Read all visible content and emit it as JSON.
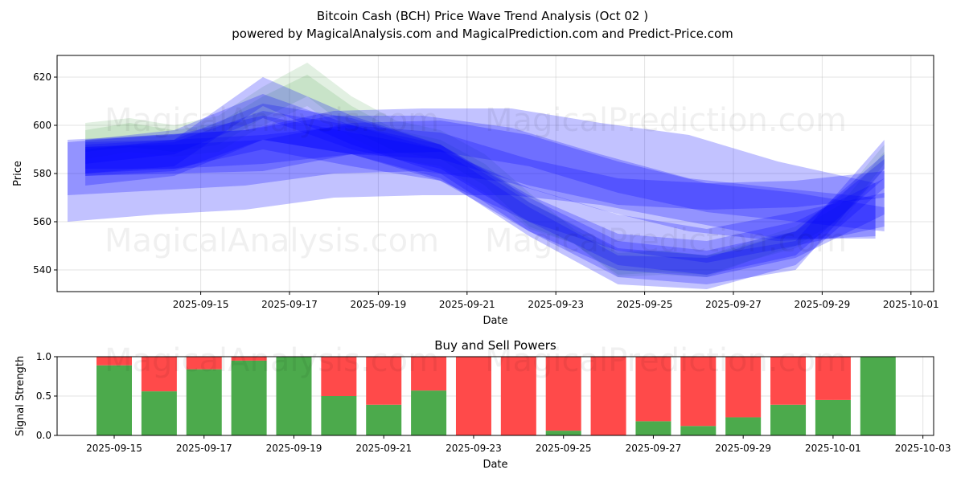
{
  "chart_data": [
    {
      "type": "area",
      "title": "Bitcoin Cash (BCH) Price Wave Trend Analysis (Oct 02 )",
      "subtitle": "powered by MagicalAnalysis.com and MagicalPrediction.com and Predict-Price.com",
      "xlabel": "Date",
      "ylabel": "Price",
      "ylim": [
        531,
        629
      ],
      "yticks": [
        "540",
        "560",
        "580",
        "600",
        "620"
      ],
      "xticks": [
        "2025-09-15",
        "2025-09-17",
        "2025-09-19",
        "2025-09-21",
        "2025-09-23",
        "2025-09-25",
        "2025-09-27",
        "2025-09-29",
        "2025-10-01"
      ],
      "grid": true,
      "watermarks": [
        "MagicalAnalysis.com",
        "MagicalPrediction.com",
        "MagicalAnalysis.com",
        "MagicalPrediction.com"
      ],
      "colors": {
        "green": "#228B22",
        "blue": "#0000ff"
      },
      "green_bands": [
        {
          "x": [
            0.4,
            1.4,
            2.4,
            3.4,
            4.4,
            5.4,
            6.4,
            7.4,
            8.4,
            9.4,
            10.4,
            11.4,
            12.4,
            13.4,
            14.4,
            15.4,
            16.4,
            17.4,
            18.4
          ],
          "upper": [
            601,
            603,
            600,
            604,
            616,
            626,
            612,
            602,
            598,
            588,
            572,
            557,
            547,
            548,
            546,
            552,
            558,
            570,
            592
          ],
          "lower": [
            589,
            591,
            589,
            592,
            603,
            612,
            598,
            589,
            586,
            575,
            558,
            551,
            537,
            538,
            537,
            544,
            550,
            561,
            584
          ]
        },
        {
          "x": [
            0.4,
            1.4,
            2.4,
            3.4,
            4.4,
            5.4,
            6.4,
            7.4,
            8.4,
            9.4,
            10.4,
            11.4,
            12.4,
            13.4,
            14.4,
            15.4,
            16.4,
            17.4,
            18.4
          ],
          "upper": [
            598,
            601,
            598,
            601,
            612,
            621,
            608,
            598,
            594,
            584,
            568,
            559,
            548,
            548,
            546,
            551,
            556,
            567,
            589
          ],
          "lower": [
            586,
            589,
            587,
            589,
            600,
            608,
            595,
            586,
            583,
            572,
            557,
            551,
            538,
            539,
            538,
            544,
            549,
            559,
            582
          ]
        }
      ],
      "blue_bands": [
        {
          "x": [
            0,
            2,
            4,
            6,
            8,
            10,
            12,
            14,
            16,
            18.2
          ],
          "upper": [
            593,
            596,
            598,
            606,
            607,
            607,
            601,
            596,
            585,
            576
          ],
          "lower": [
            560,
            563,
            565,
            570,
            571,
            571,
            567,
            560,
            553,
            553
          ]
        },
        {
          "x": [
            0,
            2,
            4,
            6,
            8,
            10,
            12,
            14,
            16,
            18.2
          ],
          "upper": [
            594,
            596,
            598,
            604,
            604,
            599,
            588,
            578,
            574,
            570
          ],
          "lower": [
            571,
            573,
            575,
            580,
            581,
            576,
            565,
            556,
            552,
            554
          ]
        },
        {
          "x": [
            0.4,
            2.4,
            4.4,
            6.4,
            8.4,
            10.4,
            12.4,
            14.4,
            16.4,
            18.4
          ],
          "upper": [
            591,
            592,
            594,
            601,
            602,
            596,
            585,
            576,
            572,
            566
          ],
          "lower": [
            579,
            580,
            581,
            588,
            589,
            583,
            572,
            564,
            560,
            556
          ]
        },
        {
          "x": [
            0.4,
            2.4,
            4.4,
            6.4,
            8.4,
            10.4,
            12.4,
            14.4,
            16.4,
            18.4
          ],
          "upper": [
            593,
            594,
            596,
            600,
            597,
            586,
            578,
            576,
            577,
            581
          ],
          "lower": [
            582,
            582,
            584,
            588,
            586,
            575,
            567,
            565,
            566,
            570
          ]
        },
        {
          "x": [
            0.4,
            2.4,
            4.4,
            6.4,
            8.4,
            10.4,
            12.4,
            14.4,
            16.4,
            18.4
          ],
          "upper": [
            594,
            596,
            604,
            597,
            590,
            574,
            563,
            557,
            564,
            572
          ],
          "lower": [
            580,
            582,
            590,
            583,
            577,
            560,
            548,
            543,
            550,
            558
          ]
        },
        {
          "x": [
            0.4,
            2.4,
            4.4,
            6.4,
            8.4,
            10.4,
            12.4,
            14.4,
            16.4,
            18.4
          ],
          "upper": [
            590,
            594,
            609,
            603,
            592,
            571,
            555,
            552,
            560,
            578
          ],
          "lower": [
            575,
            579,
            594,
            588,
            577,
            556,
            540,
            537,
            545,
            563
          ]
        },
        {
          "x": [
            0.4,
            2.4,
            4.4,
            6.4,
            8.4,
            10.4,
            12.4,
            14.4,
            16.4,
            18.4
          ],
          "upper": [
            594,
            598,
            613,
            600,
            592,
            570,
            552,
            548,
            556,
            588
          ],
          "lower": [
            584,
            588,
            603,
            590,
            582,
            560,
            542,
            538,
            546,
            578
          ]
        },
        {
          "x": [
            0.4,
            2.4,
            4.4,
            6.4,
            8.4,
            10.4,
            12.4,
            14.4,
            16.4,
            18.4
          ],
          "upper": [
            592,
            594,
            620,
            604,
            592,
            568,
            549,
            546,
            552,
            594
          ],
          "lower": [
            580,
            583,
            608,
            592,
            580,
            556,
            537,
            534,
            540,
            582
          ]
        },
        {
          "x": [
            0.4,
            2.4,
            4.4,
            6.4,
            8.4,
            10.4,
            12.4,
            14.4,
            16.4,
            18.4
          ],
          "upper": [
            591,
            593,
            606,
            600,
            590,
            566,
            546,
            545,
            556,
            586
          ],
          "lower": [
            579,
            581,
            594,
            588,
            578,
            554,
            534,
            532,
            542,
            574
          ]
        }
      ]
    },
    {
      "type": "bar",
      "title": "Buy and Sell Powers",
      "xlabel": "Date",
      "ylabel": "Signal Strength",
      "ylim": [
        0,
        1
      ],
      "yticks": [
        "0.0",
        "0.5",
        "1.0"
      ],
      "xticks": [
        "2025-09-15",
        "2025-09-17",
        "2025-09-19",
        "2025-09-21",
        "2025-09-23",
        "2025-09-25",
        "2025-09-27",
        "2025-09-29",
        "2025-10-01",
        "2025-10-03"
      ],
      "categories": [
        "2025-09-15",
        "2025-09-16",
        "2025-09-17",
        "2025-09-18",
        "2025-09-19",
        "2025-09-20",
        "2025-09-21",
        "2025-09-22",
        "2025-09-23",
        "2025-09-24",
        "2025-09-25",
        "2025-09-26",
        "2025-09-27",
        "2025-09-28",
        "2025-09-29",
        "2025-09-30",
        "2025-10-01",
        "2025-10-02"
      ],
      "series": [
        {
          "name": "Buy",
          "color": "#4caa4c",
          "values": [
            0.89,
            0.56,
            0.84,
            0.95,
            1.0,
            0.5,
            0.39,
            0.57,
            0.0,
            0.0,
            0.06,
            0.0,
            0.18,
            0.12,
            0.23,
            0.39,
            0.45,
            1.0
          ]
        },
        {
          "name": "Sell",
          "color": "#ff4a4a",
          "values": [
            0.11,
            0.44,
            0.16,
            0.05,
            0.0,
            0.5,
            0.61,
            0.43,
            1.0,
            1.0,
            0.94,
            1.0,
            0.82,
            0.88,
            0.77,
            0.61,
            0.55,
            0.0
          ]
        }
      ],
      "grid": true
    }
  ]
}
